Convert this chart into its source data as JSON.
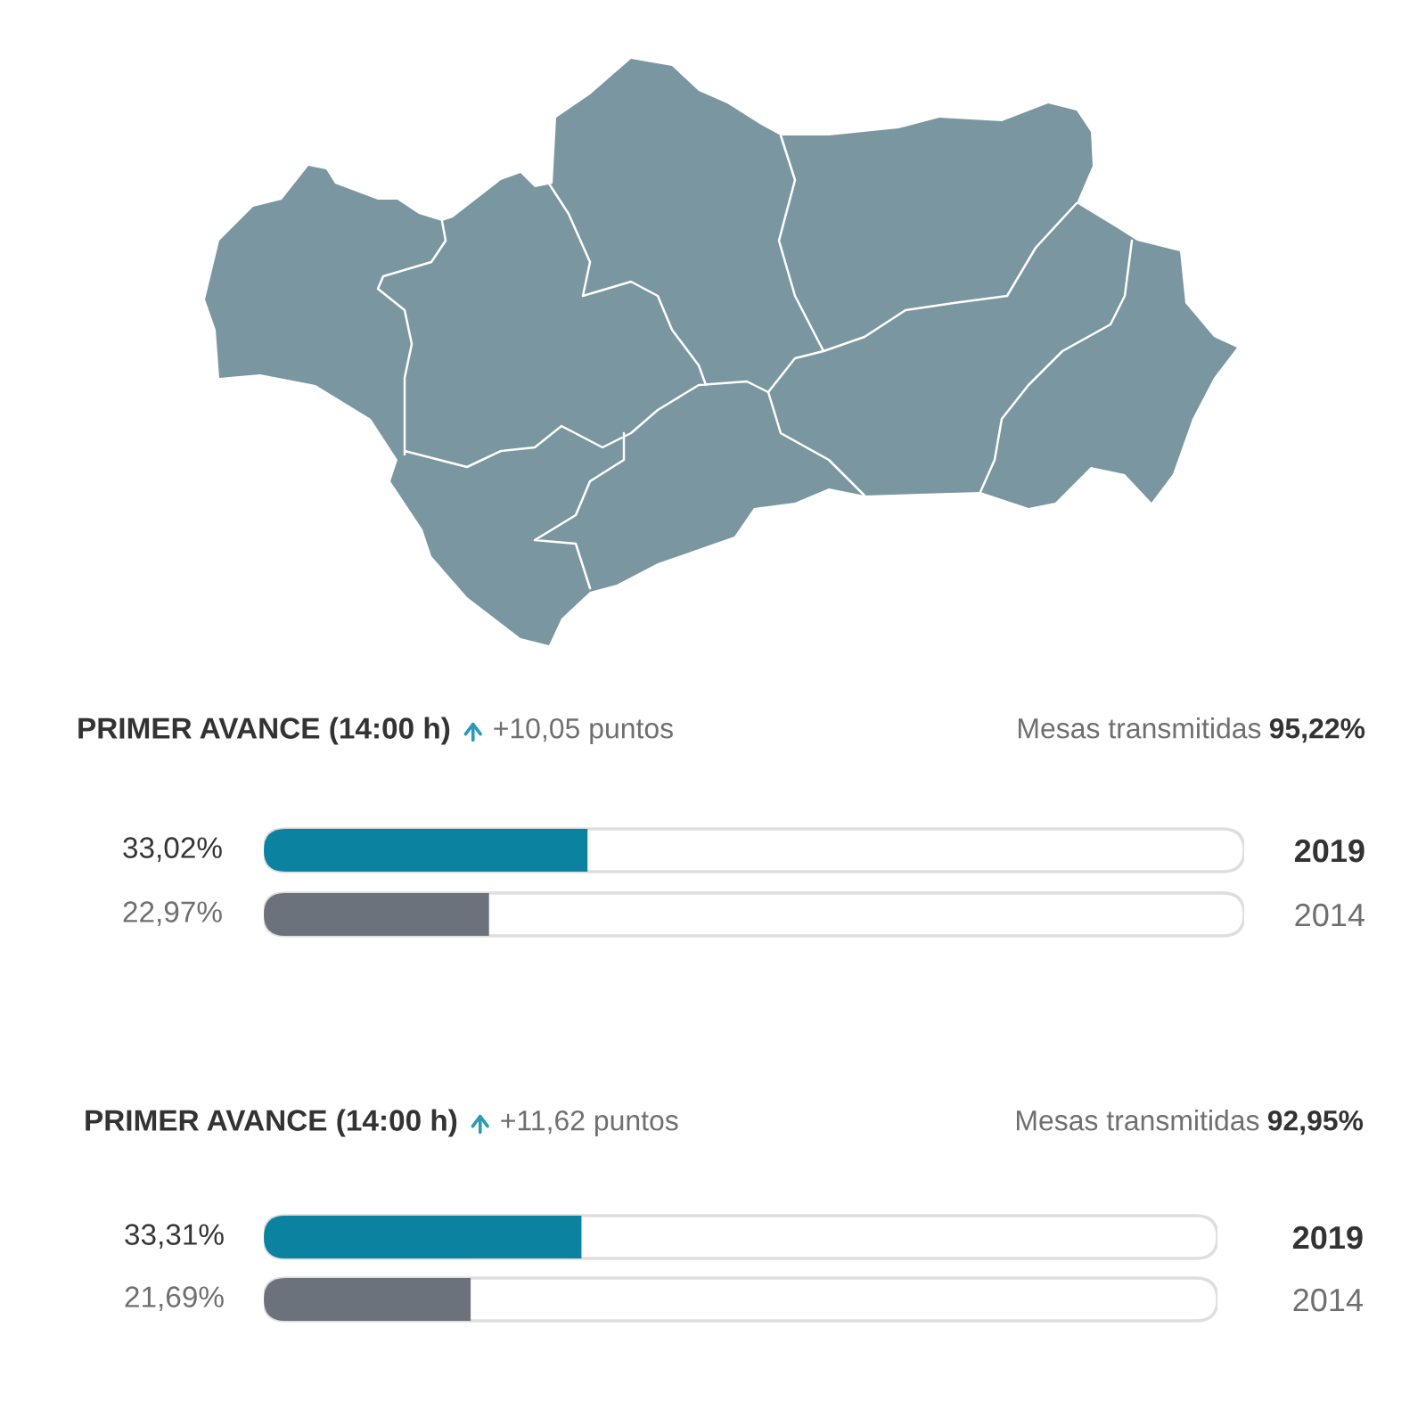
{
  "chart_data": [
    {
      "type": "bar",
      "orientation": "horizontal",
      "title": "PRIMER AVANCE (14:00 h)",
      "annotations": [
        "+10,05 puntos",
        "Mesas transmitidas",
        "95,22%"
      ],
      "categories": [
        "2019",
        "2014"
      ],
      "values": [
        33.02,
        22.97
      ],
      "colors": [
        "#0b82a0",
        "#6b727b"
      ],
      "value_labels": [
        "33,02%",
        "22,97%"
      ],
      "xlim": [
        0,
        100
      ],
      "tick_labels": "y"
    },
    {
      "type": "bar",
      "orientation": "horizontal",
      "title": "PRIMER AVANCE (14:00 h)",
      "annotations": [
        "+11,62 puntos",
        "Mesas transmitidas",
        "92,95%"
      ],
      "categories": [
        "2019",
        "2014"
      ],
      "values": [
        33.31,
        21.69
      ],
      "colors": [
        "#0b82a0",
        "#6b727b"
      ],
      "value_labels": [
        "33,31%",
        "21,69%"
      ],
      "xlim": [
        0,
        100
      ],
      "tick_labels": "y"
    }
  ]
}
